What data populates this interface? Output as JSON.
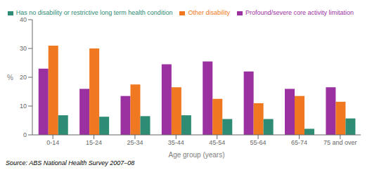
{
  "chart_data": {
    "type": "bar",
    "xlabel": "Age group (years)",
    "ylabel": "%",
    "categories": [
      "0-14",
      "15-24",
      "25-34",
      "35-44",
      "45-54",
      "55-64",
      "65-74",
      "75 and over"
    ],
    "series": [
      {
        "name": "Profound/severe core activity limitation",
        "color": "#9B30A0",
        "values": [
          23,
          16,
          13.5,
          24.5,
          25.5,
          22,
          16,
          16.5
        ]
      },
      {
        "name": "Other disability",
        "color": "#F07820",
        "values": [
          31,
          30,
          17.5,
          16.5,
          12.5,
          11,
          13.5,
          11.5
        ]
      },
      {
        "name": "Has no disability or restrictive long term health condition",
        "color": "#2E8B74",
        "values": [
          6.8,
          6.3,
          6.5,
          6.8,
          5.5,
          5.5,
          2.1,
          5.7
        ]
      }
    ],
    "ylim": [
      0,
      40
    ],
    "yticks": [
      0,
      10,
      20,
      30,
      40
    ],
    "grid": false,
    "legend": "upper right",
    "annotations": [
      "Source: ABS National Health Survey 2007–08"
    ]
  }
}
